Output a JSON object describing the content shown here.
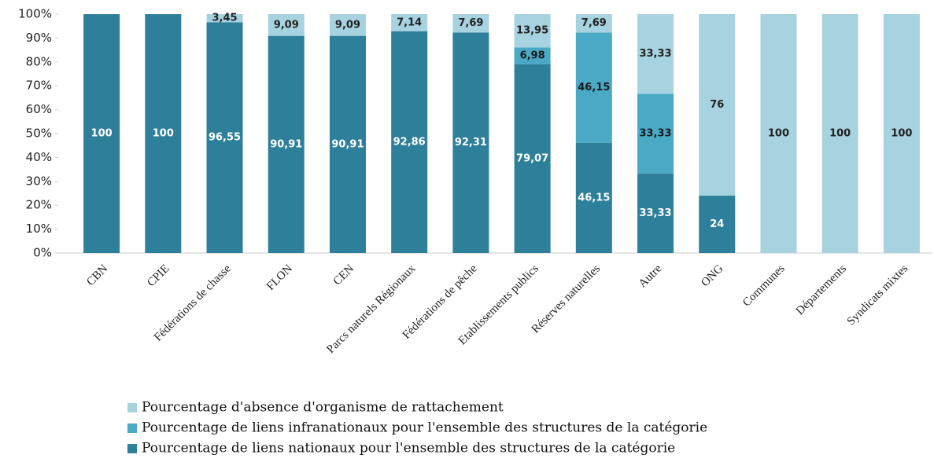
{
  "chart_data": {
    "type": "stacked_bar",
    "categories": [
      "CBN",
      "CPIE",
      "Fédérations de chasse",
      "FLON",
      "CEN",
      "Parcs naturels Régionaux",
      "Fédérations de pêche",
      "Etablissements publics",
      "Réserves naturelles",
      "Autre",
      "ONG",
      "Communes",
      "Départements",
      "Syndicats mixtes"
    ],
    "series": [
      {
        "name": "Pourcentage d'absence d'organisme de rattachement",
        "color": "#a7d2df",
        "label_color": "#222",
        "values": [
          0,
          0,
          3.45,
          9.09,
          9.09,
          7.14,
          7.69,
          13.95,
          7.69,
          33.33,
          76,
          100,
          100,
          100
        ],
        "value_labels": [
          null,
          null,
          "3,45",
          "9,09",
          "9,09",
          "7,14",
          "7,69",
          "13,95",
          "7,69",
          "33,33",
          "76",
          "100",
          "100",
          "100"
        ]
      },
      {
        "name": "Pourcentage de liens infranationaux pour l'ensemble des structures de la catégorie",
        "color": "#4aaac5",
        "label_color": "#1a1a1a",
        "values": [
          0,
          0,
          0,
          0,
          0,
          0,
          0,
          6.98,
          46.15,
          33.33,
          0,
          0,
          0,
          0
        ],
        "value_labels": [
          null,
          null,
          null,
          null,
          null,
          null,
          null,
          "6,98",
          "46,15",
          "33,33",
          null,
          null,
          null,
          null
        ]
      },
      {
        "name": "Pourcentage de liens nationaux pour l'ensemble des structures de la catégorie",
        "color": "#2e7f99",
        "label_color": "#fff",
        "values": [
          100,
          100,
          96.55,
          90.91,
          90.91,
          92.86,
          92.31,
          79.07,
          46.15,
          33.33,
          24,
          0,
          0,
          0
        ],
        "value_labels": [
          "100",
          "100",
          "96,55",
          "90,91",
          "90,91",
          "92,86",
          "92,31",
          "79,07",
          "46,15",
          "33,33",
          "24",
          null,
          null,
          null
        ]
      }
    ],
    "ylim": [
      0,
      100
    ],
    "yticks": [
      {
        "value": 0,
        "label": "0%"
      },
      {
        "value": 10,
        "label": "10%"
      },
      {
        "value": 20,
        "label": "20%"
      },
      {
        "value": 30,
        "label": "30%"
      },
      {
        "value": 40,
        "label": "40%"
      },
      {
        "value": 50,
        "label": "50%"
      },
      {
        "value": 60,
        "label": "60%"
      },
      {
        "value": 70,
        "label": "70%"
      },
      {
        "value": 80,
        "label": "80%"
      },
      {
        "value": 90,
        "label": "90%"
      },
      {
        "value": 100,
        "label": "100%"
      }
    ],
    "legend": "bottom"
  }
}
